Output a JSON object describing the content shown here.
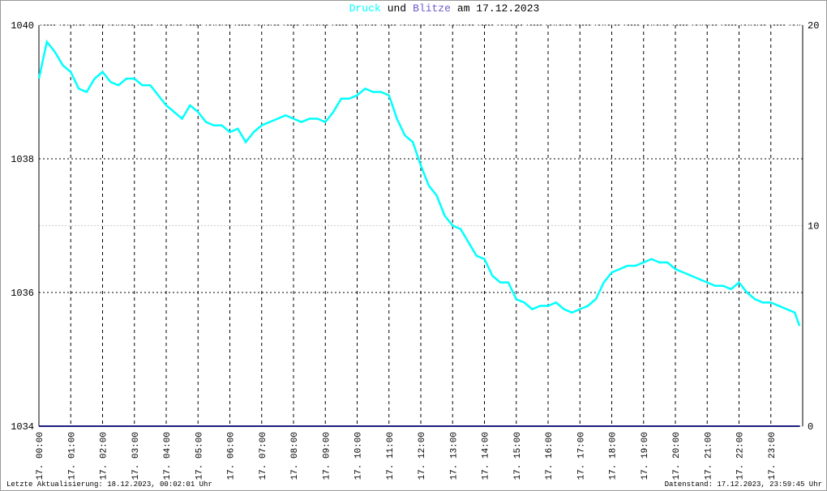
{
  "chart_data": {
    "type": "line",
    "title_parts": [
      "Druck",
      "und",
      "Blitze",
      "am 17.12.2023"
    ],
    "footer_left": "Letzte Aktualisierung: 18.12.2023, 00:02:01 Uhr",
    "footer_right": "Datenstand: 17.12.2023, 23:59:45 Uhr",
    "xlim": [
      0,
      24
    ],
    "xticks": [
      {
        "value": 0,
        "label": "17. 00:00"
      },
      {
        "value": 1,
        "label": "17. 01:00"
      },
      {
        "value": 2,
        "label": "17. 02:00"
      },
      {
        "value": 3,
        "label": "17. 03:00"
      },
      {
        "value": 4,
        "label": "17. 04:00"
      },
      {
        "value": 5,
        "label": "17. 05:00"
      },
      {
        "value": 6,
        "label": "17. 06:00"
      },
      {
        "value": 7,
        "label": "17. 07:00"
      },
      {
        "value": 8,
        "label": "17. 08:00"
      },
      {
        "value": 9,
        "label": "17. 09:00"
      },
      {
        "value": 10,
        "label": "17. 10:00"
      },
      {
        "value": 11,
        "label": "17. 11:00"
      },
      {
        "value": 12,
        "label": "17. 12:00"
      },
      {
        "value": 13,
        "label": "17. 13:00"
      },
      {
        "value": 14,
        "label": "17. 14:00"
      },
      {
        "value": 15,
        "label": "17. 15:00"
      },
      {
        "value": 16,
        "label": "17. 16:00"
      },
      {
        "value": 17,
        "label": "17. 17:00"
      },
      {
        "value": 18,
        "label": "17. 18:00"
      },
      {
        "value": 19,
        "label": "17. 19:00"
      },
      {
        "value": 20,
        "label": "17. 20:00"
      },
      {
        "value": 21,
        "label": "17. 21:00"
      },
      {
        "value": 22,
        "label": "17. 22:00"
      },
      {
        "value": 23,
        "label": "17. 23:00"
      }
    ],
    "ylim": [
      1034,
      1040
    ],
    "yticks": [
      1034,
      1036,
      1038,
      1040
    ],
    "y2lim": [
      0,
      20
    ],
    "y2ticks": [
      0,
      10,
      20
    ],
    "grid": true,
    "series": [
      {
        "name": "Druck",
        "color": "#00ffff",
        "x": [
          0,
          0.25,
          0.5,
          0.75,
          1,
          1.25,
          1.5,
          1.75,
          2,
          2.25,
          2.5,
          2.75,
          3,
          3.25,
          3.5,
          3.75,
          4,
          4.25,
          4.5,
          4.75,
          5,
          5.25,
          5.5,
          5.75,
          6,
          6.25,
          6.5,
          6.75,
          7,
          7.25,
          7.5,
          7.75,
          8,
          8.25,
          8.5,
          8.75,
          9,
          9.25,
          9.5,
          9.75,
          10,
          10.25,
          10.5,
          10.75,
          11,
          11.25,
          11.5,
          11.75,
          12,
          12.25,
          12.5,
          12.75,
          13,
          13.25,
          13.5,
          13.75,
          14,
          14.25,
          14.5,
          14.75,
          15,
          15.25,
          15.5,
          15.75,
          16,
          16.25,
          16.5,
          16.75,
          17,
          17.25,
          17.5,
          17.75,
          18,
          18.25,
          18.5,
          18.75,
          19,
          19.25,
          19.5,
          19.75,
          20,
          20.25,
          20.5,
          20.75,
          21,
          21.25,
          21.5,
          21.75,
          22,
          22.25,
          22.5,
          22.75,
          23,
          23.25,
          23.5,
          23.75,
          23.9
        ],
        "values": [
          1039.2,
          1039.75,
          1039.6,
          1039.4,
          1039.3,
          1039.05,
          1039.0,
          1039.2,
          1039.3,
          1039.15,
          1039.1,
          1039.2,
          1039.2,
          1039.1,
          1039.1,
          1038.95,
          1038.8,
          1038.7,
          1038.6,
          1038.8,
          1038.7,
          1038.55,
          1038.5,
          1038.5,
          1038.4,
          1038.45,
          1038.25,
          1038.4,
          1038.5,
          1038.55,
          1038.6,
          1038.65,
          1038.6,
          1038.55,
          1038.6,
          1038.6,
          1038.55,
          1038.7,
          1038.9,
          1038.9,
          1038.95,
          1039.05,
          1039.0,
          1039.0,
          1038.95,
          1038.6,
          1038.35,
          1038.25,
          1037.9,
          1037.6,
          1037.45,
          1037.15,
          1037.0,
          1036.95,
          1036.75,
          1036.55,
          1036.5,
          1036.25,
          1036.15,
          1036.15,
          1035.9,
          1035.85,
          1035.75,
          1035.8,
          1035.8,
          1035.85,
          1035.75,
          1035.7,
          1035.75,
          1035.8,
          1035.9,
          1036.15,
          1036.3,
          1036.35,
          1036.4,
          1036.4,
          1036.45,
          1036.5,
          1036.45,
          1036.45,
          1036.35,
          1036.3,
          1036.25,
          1036.2,
          1036.15,
          1036.1,
          1036.1,
          1036.05,
          1036.15,
          1036.0,
          1035.9,
          1035.85,
          1035.85,
          1035.8,
          1035.75,
          1035.7,
          1035.5
        ]
      },
      {
        "name": "Blitze",
        "color": "#1c1c80",
        "axis": "y2",
        "x": [
          0,
          23.9
        ],
        "values": [
          0,
          0
        ]
      }
    ]
  }
}
